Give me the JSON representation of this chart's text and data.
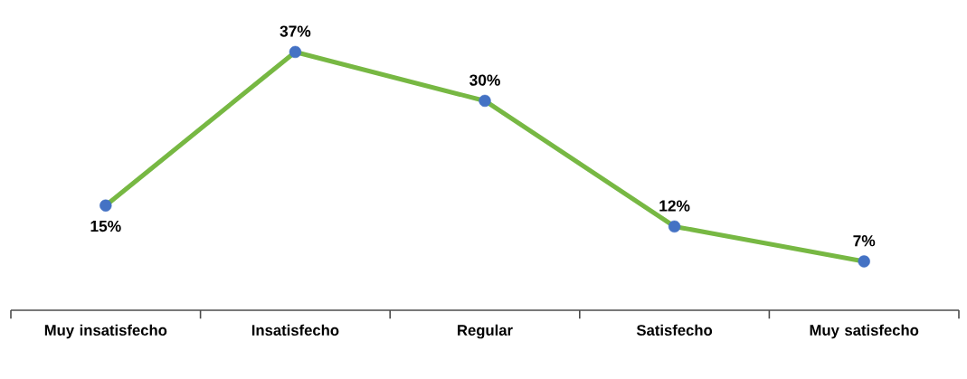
{
  "chart_data": {
    "type": "line",
    "categories": [
      "Muy insatisfecho",
      "Insatisfecho",
      "Regular",
      "Satisfecho",
      "Muy satisfecho"
    ],
    "values": [
      15,
      37,
      30,
      12,
      7
    ],
    "value_labels": [
      "15%",
      "37%",
      "30%",
      "12%",
      "7%"
    ],
    "color": "#77b843",
    "colors": [
      "#4472c4",
      "#4472c4",
      "#4472c4",
      "#4472c4",
      "#4472c4"
    ],
    "marker": "circle",
    "line_style": "solid"
  }
}
